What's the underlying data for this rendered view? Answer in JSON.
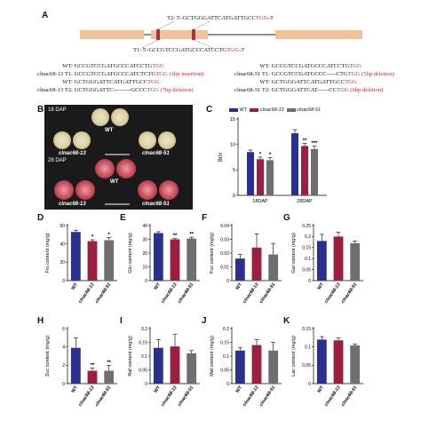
{
  "panel_labels": {
    "A": "A",
    "B": "B",
    "C": "C",
    "D": "D",
    "E": "E",
    "F": "F",
    "G": "G",
    "H": "H",
    "I": "I",
    "J": "J",
    "K": "K"
  },
  "gene_diagram": {
    "t2_label": "T2: 5'-",
    "t2_seq": "GCTGGGATTCATGATTGCC",
    "t2_pam": "TGG",
    "t2_end": "-3'",
    "t1_label": "T1: 5'-",
    "t1_seq": "GCCGTCCGATGCCCATCCTG",
    "t1_pam": "TGG",
    "t1_end": "-3'",
    "colors": {
      "exon": "#f0c29a",
      "target": "#a8324a",
      "line": "#222222"
    }
  },
  "alignments": {
    "left": [
      {
        "name": "WT:",
        "seq": "GCCGTCCGATGCCCATCCTG",
        "pam": "TGG",
        "note": ""
      },
      {
        "name": "clnac68-13 T1:",
        "seq": "GCCGTCCGATGCCCATCTCTG",
        "pam": "TGG",
        "note": "(1bp insertion)"
      },
      {
        "name": "WT:",
        "seq": "GCTGGGATTCATGATTGCC",
        "pam": "TGG",
        "note": ""
      },
      {
        "name": "clnac68-13 T2:",
        "seq": "GCTGGGATTC---------GCCC",
        "pam": "TGG",
        "note": "(7bp deletion)"
      }
    ],
    "right": [
      {
        "name": "WT:",
        "seq": "GCCGTCCGATGCCCATCCTG",
        "pam": "TGG",
        "note": ""
      },
      {
        "name": "clnac68-51 T1:",
        "seq": "GCCGTCCGATGCCC-----CTG",
        "pam": "TGG",
        "note": "(5bp deletion)"
      },
      {
        "name": "WT:",
        "seq": "GCTGGGATTCATGATTGCC",
        "pam": "TGG",
        "note": ""
      },
      {
        "name": "clnac68-51 T2:",
        "seq": "GCTGGGATTCAT------CC",
        "pam": "TGG",
        "note": "(6bp deletion)"
      }
    ]
  },
  "photo": {
    "top_label": "18 DAP",
    "top_wt": "WT",
    "top_m1": "clnac68-13",
    "top_m2": "clnac68-51",
    "bottom_label": "28 DAP",
    "bottom_wt": "WT",
    "bottom_m1": "clnac68-13",
    "bottom_m2": "clnac68-51"
  },
  "legend": {
    "wt": "WT",
    "m1": "clnac68-13",
    "m2": "clnac68-51"
  },
  "colors": {
    "wt": "#2b2f8f",
    "m1": "#9c1f3f",
    "m2": "#6f6f6f"
  },
  "chart_data": [
    {
      "id": "C",
      "type": "bar",
      "ylabel": "Brix",
      "categories": [
        "18DAP",
        "28DAP"
      ],
      "ylim": [
        0,
        15
      ],
      "yticks": [
        0,
        5,
        10,
        15
      ],
      "series": [
        {
          "name": "WT",
          "values": [
            8.5,
            12.2
          ],
          "err": [
            0.4,
            0.7
          ]
        },
        {
          "name": "clnac68-13",
          "values": [
            7.1,
            9.7
          ],
          "err": [
            0.4,
            0.5
          ]
        },
        {
          "name": "clnac68-51",
          "values": [
            6.9,
            9.1
          ],
          "err": [
            0.5,
            0.6
          ]
        }
      ],
      "sig": [
        [
          "",
          "*",
          "*"
        ],
        [
          "",
          "**",
          "***"
        ]
      ]
    },
    {
      "id": "D",
      "type": "bar",
      "ylabel": "Fru content (mg/g)",
      "categories": [
        "WT",
        "clnac68-13",
        "clnac68-51"
      ],
      "ylim": [
        0,
        60
      ],
      "yticks": [
        0,
        20,
        40,
        60
      ],
      "values": [
        53,
        43,
        44
      ],
      "err": [
        2,
        1.5,
        3
      ],
      "sig": [
        "",
        "*",
        "*"
      ]
    },
    {
      "id": "E",
      "type": "bar",
      "ylabel": "Glu content (mg/g)",
      "categories": [
        "WT",
        "clnac68-13",
        "clnac68-51"
      ],
      "ylim": [
        0,
        40
      ],
      "yticks": [
        0,
        10,
        20,
        30,
        40
      ],
      "values": [
        34.5,
        30,
        30.5
      ],
      "err": [
        1,
        0.6,
        1
      ],
      "sig": [
        "",
        "**",
        "**"
      ]
    },
    {
      "id": "F",
      "type": "bar",
      "ylabel": "Fuc content (mg/g)",
      "categories": [
        "WT",
        "clnac68-13",
        "clnac68-51"
      ],
      "ylim": [
        0,
        0.04
      ],
      "yticks": [
        0,
        0.01,
        0.02,
        0.03,
        0.04
      ],
      "values": [
        0.016,
        0.024,
        0.019
      ],
      "err": [
        0.003,
        0.01,
        0.008
      ],
      "sig": [
        "",
        "",
        ""
      ]
    },
    {
      "id": "G",
      "type": "bar",
      "ylabel": "Gal content (mg/g)",
      "categories": [
        "WT",
        "clnac68-13",
        "clnac68-51"
      ],
      "ylim": [
        0,
        0.25
      ],
      "yticks": [
        0,
        0.05,
        0.1,
        0.15,
        0.2,
        0.25
      ],
      "values": [
        0.18,
        0.2,
        0.17
      ],
      "err": [
        0.03,
        0.02,
        0.01
      ],
      "sig": [
        "",
        "",
        ""
      ]
    },
    {
      "id": "H",
      "type": "bar",
      "ylabel": "Suc content (mg/g)",
      "categories": [
        "WT",
        "clnac68-13",
        "clnac68-51"
      ],
      "ylim": [
        0,
        6
      ],
      "yticks": [
        0,
        2,
        4,
        6
      ],
      "values": [
        3.9,
        1.4,
        1.4
      ],
      "err": [
        1.1,
        0.3,
        0.6
      ],
      "sig": [
        "",
        "**",
        "**"
      ]
    },
    {
      "id": "I",
      "type": "bar",
      "ylabel": "Raf content (mg/g)",
      "categories": [
        "WT",
        "clnac68-13",
        "clnac68-51"
      ],
      "ylim": [
        0,
        0.2
      ],
      "yticks": [
        0,
        0.05,
        0.1,
        0.15,
        0.2
      ],
      "values": [
        0.13,
        0.135,
        0.11
      ],
      "err": [
        0.03,
        0.045,
        0.01
      ],
      "sig": [
        "",
        "",
        ""
      ]
    },
    {
      "id": "J",
      "type": "bar",
      "ylabel": "Mal content (mg/g)",
      "categories": [
        "WT",
        "clnac68-13",
        "clnac68-51"
      ],
      "ylim": [
        0,
        0.2
      ],
      "yticks": [
        0,
        0.05,
        0.1,
        0.15,
        0.2
      ],
      "values": [
        0.12,
        0.14,
        0.12
      ],
      "err": [
        0.01,
        0.02,
        0.03
      ],
      "sig": [
        "",
        "",
        ""
      ]
    },
    {
      "id": "K",
      "type": "bar",
      "ylabel": "Lac content (mg/g)",
      "categories": [
        "WT",
        "clnac68-13",
        "clnac68-51"
      ],
      "ylim": [
        0,
        0.15
      ],
      "yticks": [
        0,
        0.05,
        0.1,
        0.15
      ],
      "values": [
        0.12,
        0.118,
        0.104
      ],
      "err": [
        0.008,
        0.006,
        0.004
      ],
      "sig": [
        "",
        "",
        ""
      ]
    }
  ]
}
